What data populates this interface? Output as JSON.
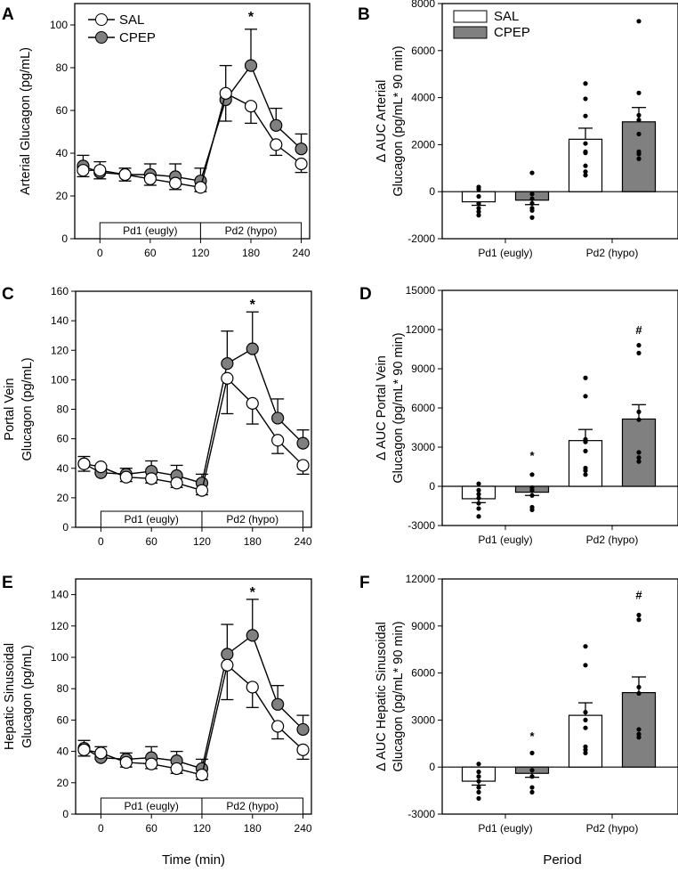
{
  "chart_data": [
    {
      "panel": "A",
      "type": "line",
      "ylabel": [
        "Arterial Glucagon (pg/mL)"
      ],
      "xlabel": "",
      "xlim": [
        -30,
        250
      ],
      "xticks": [
        0,
        60,
        120,
        180,
        240
      ],
      "ylim": [
        0,
        110
      ],
      "yticks": [
        0,
        20,
        40,
        60,
        80,
        100
      ],
      "periods": [
        "Pd1 (eugly)",
        "Pd2 (hypo)"
      ],
      "legend": [
        "SAL",
        "CPEP"
      ],
      "annotations": [
        {
          "x": 180,
          "text": "*"
        }
      ],
      "x": [
        -20,
        0,
        30,
        60,
        90,
        120,
        150,
        180,
        210,
        240
      ],
      "series": [
        {
          "name": "SAL",
          "color": "#ffffff",
          "values": [
            32,
            32,
            30,
            28,
            26,
            24,
            68,
            62,
            44,
            35
          ],
          "err": [
            3,
            4,
            3,
            3,
            3,
            2,
            13,
            8,
            5,
            4
          ]
        },
        {
          "name": "CPEP",
          "color": "#808080",
          "values": [
            34,
            31,
            30,
            30,
            29,
            27,
            65,
            81,
            53,
            42
          ],
          "err": [
            5,
            5,
            3,
            5,
            6,
            6,
            16,
            17,
            8,
            7
          ]
        }
      ]
    },
    {
      "panel": "B",
      "type": "bar",
      "ylabel": [
        "Δ AUC Arterial",
        "Glucagon (pg/mL* 90 min)"
      ],
      "xlabel": "",
      "ylim": [
        -2000,
        8000
      ],
      "yticks": [
        -2000,
        0,
        2000,
        4000,
        6000,
        8000
      ],
      "categories": [
        "Pd1 (eugly)",
        "Pd2 (hypo)"
      ],
      "legend": [
        "SAL",
        "CPEP"
      ],
      "series": [
        {
          "name": "SAL",
          "color": "#ffffff",
          "values": [
            -430,
            2230
          ],
          "err": [
            150,
            470
          ],
          "points": [
            [
              200,
              100,
              -200,
              -500,
              -700,
              -850,
              -1000
            ],
            [
              4600,
              3950,
              3220,
              2050,
              1700,
              1650,
              1100,
              850,
              700
            ]
          ]
        },
        {
          "name": "CPEP",
          "color": "#808080",
          "values": [
            -360,
            2970
          ],
          "err": [
            190,
            610
          ],
          "points": [
            [
              800,
              -100,
              -300,
              -500,
              -700,
              -800,
              -1100
            ],
            [
              7250,
              4200,
              3250,
              3050,
              2450,
              1700,
              1600,
              1400
            ]
          ]
        }
      ],
      "annotations": []
    },
    {
      "panel": "C",
      "type": "line",
      "ylabel": [
        "Portal Vein",
        "Glucagon (pg/mL)"
      ],
      "xlabel": "",
      "xlim": [
        -30,
        250
      ],
      "xticks": [
        0,
        60,
        120,
        180,
        240
      ],
      "ylim": [
        0,
        160
      ],
      "yticks": [
        0,
        20,
        40,
        60,
        80,
        100,
        120,
        140,
        160
      ],
      "periods": [
        "Pd1 (eugly)",
        "Pd2 (hypo)"
      ],
      "annotations": [
        {
          "x": 180,
          "text": "*"
        }
      ],
      "x": [
        -20,
        0,
        30,
        60,
        90,
        120,
        150,
        180,
        210,
        240
      ],
      "series": [
        {
          "name": "SAL",
          "color": "#ffffff",
          "values": [
            43,
            41,
            34,
            33,
            30,
            25,
            101,
            84,
            59,
            42
          ],
          "err": [
            5,
            4,
            3,
            3,
            3,
            3,
            24,
            14,
            9,
            6
          ]
        },
        {
          "name": "CPEP",
          "color": "#808080",
          "values": [
            43,
            37,
            36,
            38,
            35,
            30,
            111,
            121,
            74,
            57
          ],
          "err": [
            5,
            5,
            4,
            7,
            7,
            6,
            22,
            25,
            13,
            9
          ]
        }
      ]
    },
    {
      "panel": "D",
      "type": "bar",
      "ylabel": [
        "Δ AUC Portal Vein",
        "Glucagon (pg/mL* 90 min)"
      ],
      "xlabel": "",
      "ylim": [
        -3000,
        15000
      ],
      "yticks": [
        -3000,
        0,
        3000,
        6000,
        9000,
        12000,
        15000
      ],
      "categories": [
        "Pd1 (eugly)",
        "Pd2 (hypo)"
      ],
      "series": [
        {
          "name": "SAL",
          "color": "#ffffff",
          "values": [
            -950,
            3500
          ],
          "err": [
            300,
            850
          ],
          "points": [
            [
              200,
              -300,
              -600,
              -900,
              -1300,
              -1700,
              -2300
            ],
            [
              8300,
              6900,
              3600,
              3400,
              2700,
              1400,
              1200,
              900
            ]
          ]
        },
        {
          "name": "CPEP",
          "color": "#808080",
          "values": [
            -450,
            5150
          ],
          "err": [
            250,
            1100
          ],
          "points": [
            [
              900,
              -100,
              -300,
              -700,
              -1600,
              -1800
            ],
            [
              10800,
              10200,
              5700,
              5100,
              2600,
              2200,
              1900
            ]
          ]
        }
      ],
      "annotations": [
        {
          "series": 1,
          "category": 0,
          "text": "*",
          "y": 2400
        },
        {
          "series": 1,
          "category": 1,
          "text": "#",
          "y": 12000
        }
      ]
    },
    {
      "panel": "E",
      "type": "line",
      "ylabel": [
        "Hepatic Sinusoidal",
        "Glucagon (pg/mL)"
      ],
      "xlabel": "Time (min)",
      "xlim": [
        -30,
        250
      ],
      "xticks": [
        0,
        60,
        120,
        180,
        240
      ],
      "ylim": [
        0,
        150
      ],
      "yticks": [
        0,
        20,
        40,
        60,
        80,
        100,
        120,
        140
      ],
      "periods": [
        "Pd1 (eugly)",
        "Pd2 (hypo)"
      ],
      "annotations": [
        {
          "x": 180,
          "text": "*"
        }
      ],
      "x": [
        -20,
        0,
        30,
        60,
        90,
        120,
        150,
        180,
        210,
        240
      ],
      "series": [
        {
          "name": "SAL",
          "color": "#ffffff",
          "values": [
            41,
            39,
            33,
            32,
            29,
            25,
            95,
            81,
            56,
            41
          ],
          "err": [
            4,
            4,
            3,
            3,
            3,
            3,
            22,
            13,
            8,
            6
          ]
        },
        {
          "name": "CPEP",
          "color": "#808080",
          "values": [
            42,
            36,
            35,
            36,
            34,
            29,
            102,
            114,
            70,
            54
          ],
          "err": [
            5,
            7,
            4,
            7,
            6,
            6,
            19,
            23,
            12,
            9
          ]
        }
      ]
    },
    {
      "panel": "F",
      "type": "bar",
      "ylabel": [
        "Δ AUC Hepatic Sinusoidal",
        "Glucagon (pg/mL* 90 min)"
      ],
      "xlabel": "Period",
      "ylim": [
        -3000,
        12000
      ],
      "yticks": [
        -3000,
        0,
        3000,
        6000,
        9000,
        12000
      ],
      "categories": [
        "Pd1 (eugly)",
        "Pd2 (hypo)"
      ],
      "series": [
        {
          "name": "SAL",
          "color": "#ffffff",
          "values": [
            -900,
            3300
          ],
          "err": [
            250,
            800
          ],
          "points": [
            [
              200,
              -300,
              -600,
              -900,
              -1300,
              -1600,
              -2000
            ],
            [
              7700,
              6500,
              3500,
              3000,
              2500,
              1300,
              1100,
              900
            ]
          ]
        },
        {
          "name": "CPEP",
          "color": "#808080",
          "values": [
            -400,
            4750
          ],
          "err": [
            250,
            1000
          ],
          "points": [
            [
              900,
              -200,
              -600,
              -1300,
              -1600
            ],
            [
              9700,
              9400,
              5100,
              4700,
              2400,
              2100,
              1900
            ]
          ]
        }
      ],
      "annotations": [
        {
          "series": 1,
          "category": 0,
          "text": "*",
          "y": 2000
        },
        {
          "series": 1,
          "category": 1,
          "text": "#",
          "y": 11000
        }
      ]
    }
  ]
}
